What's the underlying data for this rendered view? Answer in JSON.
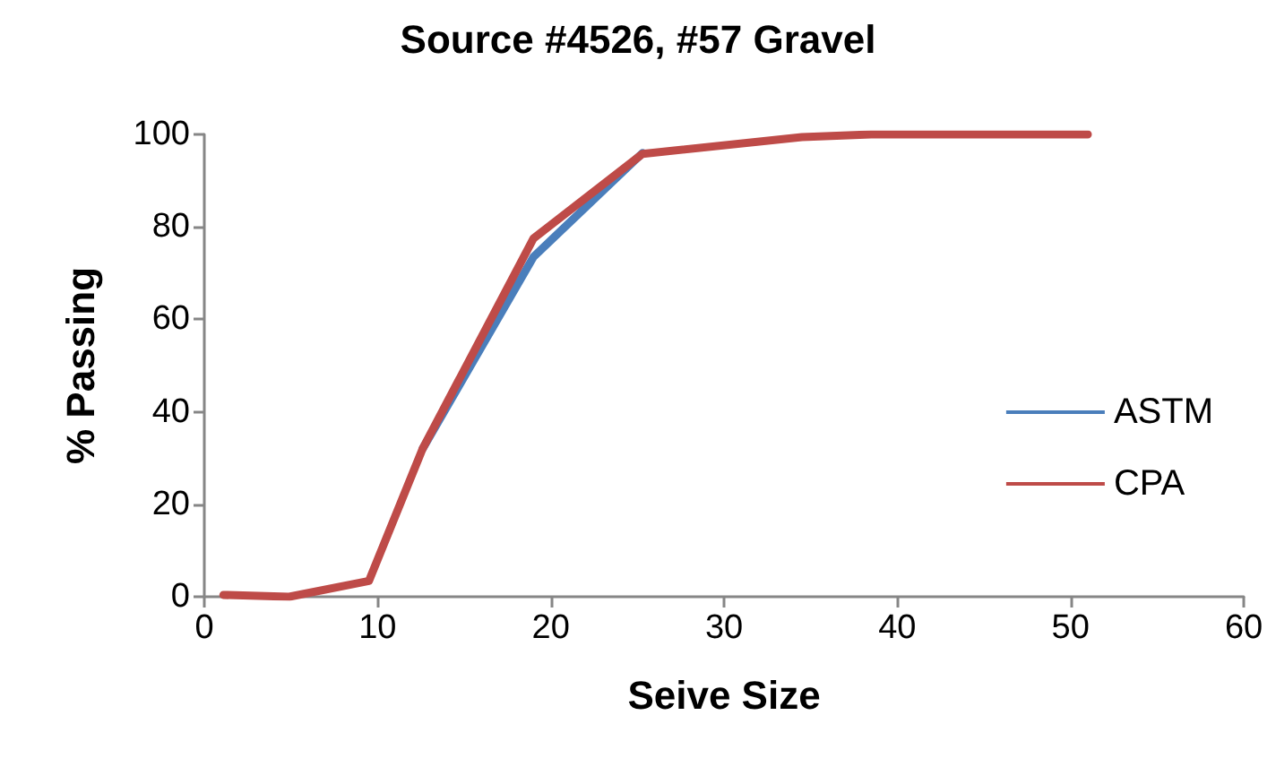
{
  "chart_data": {
    "type": "line",
    "title": "Source #4526, #57 Gravel",
    "xlabel": "Seive Size",
    "ylabel": "% Passing",
    "x": [
      1.1,
      4.9,
      9.5,
      12.6,
      19,
      25.3,
      34.5,
      38.5,
      51
    ],
    "series": [
      {
        "name": "ASTM",
        "color": "#4a7ebb",
        "values": [
          null,
          null,
          null,
          32,
          73.5,
          96,
          null,
          null,
          null
        ]
      },
      {
        "name": "CPA",
        "color": "#be4b48",
        "values": [
          0.4,
          0,
          3.4,
          32,
          77.5,
          95.8,
          99.4,
          100,
          100
        ]
      }
    ],
    "xlim": [
      0,
      60
    ],
    "xticks": [
      0,
      10,
      20,
      30,
      40,
      50,
      60
    ],
    "ylim": [
      0,
      100
    ],
    "yticks": [
      0,
      20,
      40,
      60,
      80,
      100
    ],
    "grid": false,
    "legend": "right",
    "marker": "none",
    "line_style": "solid"
  }
}
